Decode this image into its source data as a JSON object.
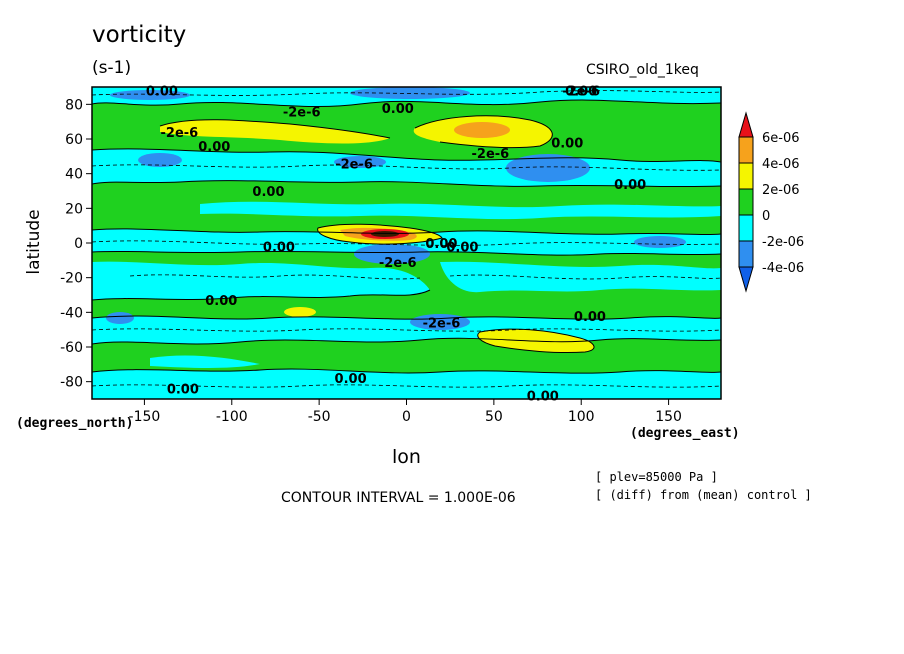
{
  "header": {
    "title": "vorticity",
    "units": "(s-1)",
    "dataset": "CSIRO_old_1keq"
  },
  "footer": {
    "contour_interval": "CONTOUR INTERVAL = 1.000E-06",
    "meta_line1": "[ plev=85000 Pa ]",
    "meta_line2": "[ (diff) from (mean) control ]"
  },
  "chart_data": {
    "type": "heatmap",
    "title": "vorticity",
    "units": "(s-1)",
    "xlabel": "lon",
    "ylabel": "latitude",
    "x_units": "(degrees_east)",
    "y_units": "(degrees_north)",
    "xlim": [
      -180,
      180
    ],
    "ylim": [
      -90,
      90
    ],
    "x_ticks": [
      -150,
      -100,
      -50,
      0,
      50,
      100,
      150
    ],
    "y_ticks": [
      -80,
      -60,
      -40,
      -20,
      0,
      20,
      40,
      60,
      80
    ],
    "x_tick_labels": [
      "-150",
      "-100",
      "-50",
      "0",
      "50",
      "100",
      "150"
    ],
    "y_tick_labels": [
      "-80",
      "-60",
      "-40",
      "-20",
      "0",
      "20",
      "40",
      "60",
      "80"
    ],
    "colorbar": {
      "levels": [
        "6e-06",
        "4e-06",
        "2e-06",
        "0",
        "-2e-06",
        "-4e-06"
      ],
      "colors": [
        "#e8111a",
        "#f6a21c",
        "#f5f500",
        "#1fd11f",
        "#00ffff",
        "#2f8ff0",
        "#1060e8"
      ]
    },
    "contour_labels": [
      {
        "text": "0.00",
        "lon": -140,
        "lat": 88
      },
      {
        "text": "0.00",
        "lon": 100,
        "lat": 88
      },
      {
        "text": "-2e-6",
        "lon": 100,
        "lat": 88
      },
      {
        "text": "-2e-6",
        "lon": -60,
        "lat": 76
      },
      {
        "text": "0.00",
        "lon": -5,
        "lat": 78
      },
      {
        "text": "-2e-6",
        "lon": -130,
        "lat": 64
      },
      {
        "text": "0.00",
        "lon": -110,
        "lat": 56
      },
      {
        "text": "-2e-6",
        "lon": -30,
        "lat": 46
      },
      {
        "text": "-2e-6",
        "lon": 48,
        "lat": 52
      },
      {
        "text": "0.00",
        "lon": 92,
        "lat": 58
      },
      {
        "text": "0.00",
        "lon": -79,
        "lat": 30
      },
      {
        "text": "0.00",
        "lon": 128,
        "lat": 34
      },
      {
        "text": "0.00",
        "lon": -73,
        "lat": -2
      },
      {
        "text": "0.00",
        "lon": 20,
        "lat": 0
      },
      {
        "text": "0.00",
        "lon": 32,
        "lat": -2
      },
      {
        "text": "-2e-6",
        "lon": -5,
        "lat": -11
      },
      {
        "text": "0.00",
        "lon": -106,
        "lat": -33
      },
      {
        "text": "0.00",
        "lon": 105,
        "lat": -42
      },
      {
        "text": "-2e-6",
        "lon": 20,
        "lat": -46
      },
      {
        "text": "0.00",
        "lon": -32,
        "lat": -78
      },
      {
        "text": "0.00",
        "lon": -128,
        "lat": -84
      },
      {
        "text": "0.00",
        "lon": 78,
        "lat": -88
      }
    ]
  }
}
